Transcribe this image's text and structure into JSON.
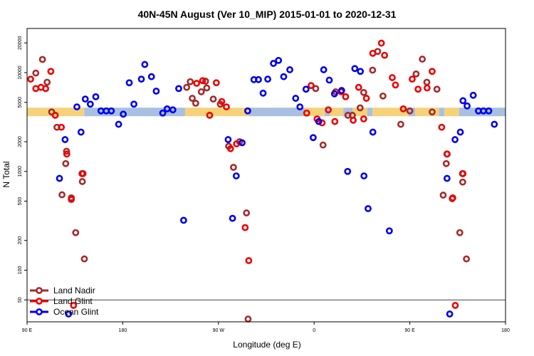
{
  "chart_data": {
    "type": "scatter",
    "title": "40N-45N August (Ver 10_MIP)   2015-01-01 to 2020-12-31",
    "xlabel": "Longitude (deg E)",
    "ylabel": "N Total",
    "y_scale": "log",
    "ylim": [
      30,
      28000
    ],
    "xlim": [
      90,
      450
    ],
    "x_ticks": [
      {
        "value": 90,
        "label": "90 E"
      },
      {
        "value": 162,
        "label": "180"
      },
      {
        "value": 234,
        "label": "90 W"
      },
      {
        "value": 306,
        "label": "0"
      },
      {
        "value": 378,
        "label": "90 E"
      },
      {
        "value": 450,
        "label": "180"
      }
    ],
    "y_ticks": [
      {
        "value": 50,
        "label": "50"
      },
      {
        "value": 100,
        "label": "100"
      },
      {
        "value": 200,
        "label": "200"
      },
      {
        "value": 500,
        "label": "500"
      },
      {
        "value": 1000,
        "label": "1000"
      },
      {
        "value": 2000,
        "label": "2000"
      },
      {
        "value": 5000,
        "label": "5000"
      },
      {
        "value": 10000,
        "label": "10000"
      },
      {
        "value": 20000,
        "label": "20000"
      }
    ],
    "reference_line": 50,
    "surface_band": {
      "value": 4000,
      "land_color": "#f5d27a",
      "ocean_color": "#a8bfe0",
      "segments": [
        {
          "x0": 90,
          "x1": 133,
          "type": "land"
        },
        {
          "x0": 133,
          "x1": 209,
          "type": "ocean"
        },
        {
          "x0": 209,
          "x1": 257,
          "type": "land"
        },
        {
          "x0": 257,
          "x1": 299,
          "type": "ocean"
        },
        {
          "x0": 299,
          "x1": 314,
          "type": "land"
        },
        {
          "x0": 314,
          "x1": 318,
          "type": "ocean"
        },
        {
          "x0": 318,
          "x1": 328,
          "type": "land"
        },
        {
          "x0": 328,
          "x1": 335,
          "type": "ocean"
        },
        {
          "x0": 335,
          "x1": 346,
          "type": "land"
        },
        {
          "x0": 346,
          "x1": 350,
          "type": "ocean"
        },
        {
          "x0": 350,
          "x1": 377,
          "type": "land"
        },
        {
          "x0": 377,
          "x1": 382,
          "type": "ocean"
        },
        {
          "x0": 382,
          "x1": 400,
          "type": "land"
        },
        {
          "x0": 400,
          "x1": 404,
          "type": "ocean"
        },
        {
          "x0": 404,
          "x1": 415,
          "type": "land"
        },
        {
          "x0": 415,
          "x1": 450,
          "type": "ocean"
        }
      ]
    },
    "legend": {
      "position": "bottom-left",
      "entries": [
        "Land Nadir",
        "Land Glint",
        "Ocean Glint"
      ]
    },
    "series": [
      {
        "name": "Land Nadir",
        "color": "#a52a2a",
        "points": [
          [
            96.6,
            9900
          ],
          [
            101.6,
            13600
          ],
          [
            105.1,
            8000
          ],
          [
            108.5,
            4000
          ],
          [
            112.5,
            2800
          ],
          [
            116.3,
            580
          ],
          [
            119.1,
            1200
          ],
          [
            119.7,
            1600
          ],
          [
            123.3,
            540
          ],
          [
            126.6,
            240
          ],
          [
            131.6,
            790
          ],
          [
            131.3,
            950
          ],
          [
            133.1,
            130
          ],
          [
            210.1,
            7100
          ],
          [
            212.8,
            8100
          ],
          [
            214.3,
            5500
          ],
          [
            216.9,
            4900
          ],
          [
            221.1,
            6400
          ],
          [
            224.3,
            8200
          ],
          [
            225.2,
            7000
          ],
          [
            230.1,
            5400
          ],
          [
            235.4,
            4800
          ],
          [
            241.7,
            1800
          ],
          [
            245.3,
            1100
          ],
          [
            249.9,
            2000
          ],
          [
            255.1,
            380
          ],
          [
            256.3,
            32
          ],
          [
            307.2,
            6900
          ],
          [
            312.7,
            1850
          ],
          [
            322.2,
            6400
          ],
          [
            331.4,
            3700
          ],
          [
            334.8,
            3700
          ],
          [
            340.6,
            4400
          ],
          [
            343.3,
            6300
          ],
          [
            350.0,
            10600
          ],
          [
            353.8,
            16400
          ],
          [
            357.8,
            5800
          ],
          [
            371.2,
            3000
          ],
          [
            378.0,
            4100
          ],
          [
            382.7,
            9700
          ],
          [
            387.4,
            13700
          ],
          [
            390.8,
            8000
          ],
          [
            394.8,
            4000
          ],
          [
            398.4,
            6800
          ],
          [
            403.1,
            575
          ],
          [
            405.4,
            1200
          ],
          [
            406.1,
            1500
          ],
          [
            409.9,
            530
          ],
          [
            415.6,
            240
          ],
          [
            417.8,
            780
          ],
          [
            417.6,
            950
          ],
          [
            420.6,
            130
          ]
        ]
      },
      {
        "name": "Land Glint",
        "color": "#ee0000",
        "points": [
          [
            92.7,
            8600
          ],
          [
            96.6,
            6900
          ],
          [
            100.5,
            7100
          ],
          [
            104.0,
            6900
          ],
          [
            107.9,
            10300
          ],
          [
            111.2,
            3700
          ],
          [
            115.8,
            2800
          ],
          [
            119.9,
            1500
          ],
          [
            123.3,
            520
          ],
          [
            125.0,
            44
          ],
          [
            132.1,
            950
          ],
          [
            217.6,
            7800
          ],
          [
            222.1,
            8300
          ],
          [
            227.4,
            3700
          ],
          [
            232.4,
            7900
          ],
          [
            236.5,
            5100
          ],
          [
            240.0,
            4500
          ],
          [
            243.1,
            1700
          ],
          [
            247.6,
            1900
          ],
          [
            254.1,
            270
          ],
          [
            256.8,
            125
          ],
          [
            300.4,
            3900
          ],
          [
            303.7,
            7400
          ],
          [
            308.2,
            3400
          ],
          [
            312.0,
            3100
          ],
          [
            316.7,
            4200
          ],
          [
            321.6,
            3200
          ],
          [
            326.3,
            6400
          ],
          [
            329.7,
            5700
          ],
          [
            335.4,
            3300
          ],
          [
            339.5,
            7100
          ],
          [
            343.3,
            3400
          ],
          [
            345.3,
            5500
          ],
          [
            350.1,
            15700
          ],
          [
            356.6,
            19900
          ],
          [
            359.0,
            15000
          ],
          [
            364.8,
            8900
          ],
          [
            367.2,
            7500
          ],
          [
            373.1,
            4300
          ],
          [
            379.8,
            8600
          ],
          [
            384.2,
            6800
          ],
          [
            391.0,
            7000
          ],
          [
            394.8,
            10300
          ],
          [
            402.0,
            2800
          ],
          [
            405.9,
            1500
          ],
          [
            410.3,
            540
          ],
          [
            412.2,
            44
          ],
          [
            418.0,
            950
          ]
        ]
      },
      {
        "name": "Ocean Glint",
        "color": "#0000ee",
        "points": [
          [
            114.4,
            850
          ],
          [
            118.6,
            2100
          ],
          [
            121.2,
            36
          ],
          [
            127.5,
            4500
          ],
          [
            130.6,
            2500
          ],
          [
            133.8,
            5400
          ],
          [
            137.6,
            4800
          ],
          [
            141.7,
            5700
          ],
          [
            145.6,
            4100
          ],
          [
            149.6,
            4100
          ],
          [
            153.4,
            4100
          ],
          [
            158.9,
            3000
          ],
          [
            162.4,
            3800
          ],
          [
            166.9,
            7900
          ],
          [
            170.4,
            4800
          ],
          [
            176.0,
            8600
          ],
          [
            178.6,
            12100
          ],
          [
            183.6,
            9100
          ],
          [
            187.2,
            6500
          ],
          [
            192.1,
            3900
          ],
          [
            195.4,
            4300
          ],
          [
            199.7,
            4200
          ],
          [
            204.1,
            6900
          ],
          [
            207.8,
            320
          ],
          [
            241.3,
            2100
          ],
          [
            244.6,
            335
          ],
          [
            247.4,
            900
          ],
          [
            251.8,
            1950
          ],
          [
            256.0,
            4100
          ],
          [
            260.7,
            8500
          ],
          [
            264.1,
            8500
          ],
          [
            267.6,
            6200
          ],
          [
            271.1,
            8600
          ],
          [
            275.4,
            12400
          ],
          [
            279.2,
            13300
          ],
          [
            283.1,
            9100
          ],
          [
            287.7,
            10700
          ],
          [
            292.1,
            5500
          ],
          [
            295.3,
            4500
          ],
          [
            299.9,
            6800
          ],
          [
            305.3,
            2200
          ],
          [
            309.5,
            3200
          ],
          [
            313.2,
            10700
          ],
          [
            317.4,
            8400
          ],
          [
            321.3,
            6100
          ],
          [
            326.7,
            6600
          ],
          [
            331.2,
            1000
          ],
          [
            336.6,
            11000
          ],
          [
            340.8,
            10300
          ],
          [
            343.5,
            900
          ],
          [
            346.6,
            420
          ],
          [
            350.2,
            2500
          ],
          [
            362.6,
            250
          ],
          [
            418.0,
            5200
          ],
          [
            421.1,
            4600
          ],
          [
            425.7,
            5900
          ],
          [
            429.6,
            4100
          ],
          [
            433.4,
            4100
          ],
          [
            437.4,
            4100
          ],
          [
            441.6,
            3000
          ],
          [
            412.0,
            2100
          ],
          [
            416.0,
            2500
          ],
          [
            408.0,
            36
          ],
          [
            406.0,
            850
          ]
        ]
      }
    ]
  }
}
